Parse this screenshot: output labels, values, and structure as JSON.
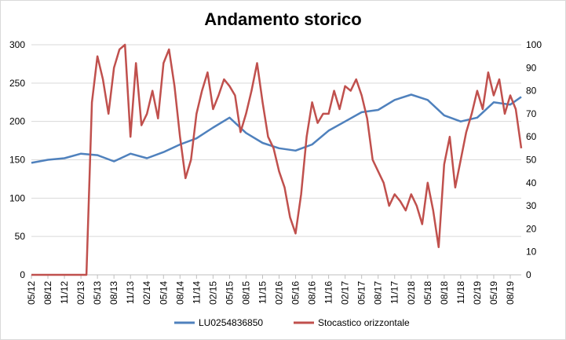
{
  "chart_data": {
    "type": "line",
    "title": "Andamento storico",
    "xlabel": "",
    "ylabel": "",
    "x_tick_labels": [
      "05/12",
      "08/12",
      "11/12",
      "02/13",
      "05/13",
      "08/13",
      "11/13",
      "02/14",
      "05/14",
      "08/14",
      "11/14",
      "02/15",
      "05/15",
      "08/15",
      "11/15",
      "02/16",
      "05/16",
      "08/16",
      "11/16",
      "02/17",
      "05/17",
      "08/17",
      "11/17",
      "02/18",
      "05/18",
      "08/18",
      "11/18",
      "02/19",
      "05/19",
      "08/19"
    ],
    "y_left": {
      "lim": [
        0,
        300
      ],
      "ticks": [
        "0",
        "50",
        "100",
        "150",
        "200",
        "250",
        "300"
      ]
    },
    "y_right": {
      "lim": [
        0,
        100
      ],
      "ticks": [
        "0",
        "10",
        "20",
        "30",
        "40",
        "50",
        "60",
        "70",
        "80",
        "90",
        "100"
      ]
    },
    "grid": true,
    "legend_position": "bottom",
    "series": [
      {
        "name": "LU0254836850",
        "axis": "left",
        "color": "#4f81bd",
        "x": [
          "05/12",
          "08/12",
          "11/12",
          "02/13",
          "05/13",
          "08/13",
          "11/13",
          "02/14",
          "05/14",
          "08/14",
          "11/14",
          "02/15",
          "05/15",
          "08/15",
          "11/15",
          "02/16",
          "05/16",
          "08/16",
          "11/16",
          "02/17",
          "05/17",
          "08/17",
          "11/17",
          "02/18",
          "05/18",
          "08/18",
          "11/18",
          "02/19",
          "05/19",
          "08/19",
          "10/19"
        ],
        "values": [
          146,
          150,
          152,
          158,
          156,
          148,
          158,
          152,
          160,
          170,
          178,
          192,
          205,
          185,
          172,
          165,
          162,
          170,
          188,
          200,
          212,
          215,
          228,
          235,
          228,
          208,
          200,
          205,
          225,
          222,
          232
        ]
      },
      {
        "name": "Stocastico orizzontale",
        "axis": "right",
        "color": "#c0504d",
        "x": [
          "05/12",
          "08/12",
          "11/12",
          "02/13",
          "03/13",
          "04/13",
          "05/13",
          "06/13",
          "07/13",
          "08/13",
          "09/13",
          "10/13",
          "11/13",
          "12/13",
          "01/14",
          "02/14",
          "03/14",
          "04/14",
          "05/14",
          "06/14",
          "07/14",
          "08/14",
          "09/14",
          "10/14",
          "11/14",
          "12/14",
          "01/15",
          "02/15",
          "03/15",
          "04/15",
          "05/15",
          "06/15",
          "07/15",
          "08/15",
          "09/15",
          "10/15",
          "11/15",
          "12/15",
          "01/16",
          "02/16",
          "03/16",
          "04/16",
          "05/16",
          "06/16",
          "07/16",
          "08/16",
          "09/16",
          "10/16",
          "11/16",
          "12/16",
          "01/17",
          "02/17",
          "03/17",
          "04/17",
          "05/17",
          "06/17",
          "07/17",
          "08/17",
          "09/17",
          "10/17",
          "11/17",
          "12/17",
          "01/18",
          "02/18",
          "03/18",
          "04/18",
          "05/18",
          "06/18",
          "07/18",
          "08/18",
          "09/18",
          "10/18",
          "11/18",
          "12/18",
          "01/19",
          "02/19",
          "03/19",
          "04/19",
          "05/19",
          "06/19",
          "07/19",
          "08/19",
          "09/19",
          "10/19"
        ],
        "values": [
          0,
          0,
          0,
          0,
          0,
          75,
          95,
          85,
          70,
          90,
          98,
          100,
          60,
          92,
          65,
          70,
          80,
          68,
          92,
          98,
          82,
          60,
          42,
          50,
          70,
          80,
          88,
          72,
          78,
          85,
          82,
          78,
          62,
          70,
          80,
          92,
          75,
          60,
          55,
          45,
          38,
          25,
          18,
          35,
          60,
          75,
          66,
          70,
          70,
          80,
          72,
          82,
          80,
          85,
          78,
          68,
          50,
          45,
          40,
          30,
          35,
          32,
          28,
          35,
          30,
          22,
          40,
          28,
          12,
          48,
          60,
          38,
          50,
          62,
          70,
          80,
          72,
          88,
          78,
          85,
          70,
          78,
          72,
          55
        ]
      }
    ]
  }
}
